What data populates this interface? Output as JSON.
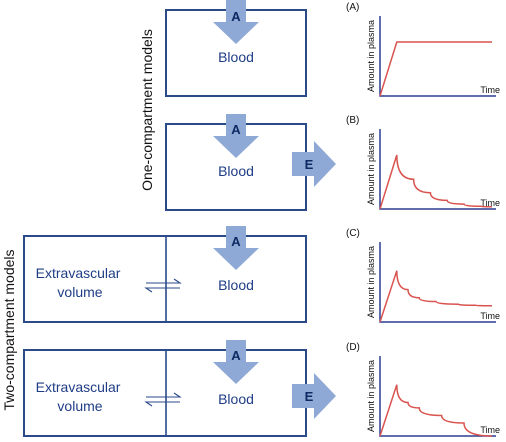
{
  "side_labels": {
    "one": "One-compartment models",
    "two": "Two-compartment models"
  },
  "models": [
    {
      "letter": "(A)",
      "admin": "A",
      "central": "Blood",
      "peripheral": "",
      "elimination": ""
    },
    {
      "letter": "(B)",
      "admin": "A",
      "central": "Blood",
      "peripheral": "",
      "elimination": "E"
    },
    {
      "letter": "(C)",
      "admin": "A",
      "central": "Blood",
      "peripheral": [
        "Extravascular",
        "volume"
      ],
      "elimination": ""
    },
    {
      "letter": "(D)",
      "admin": "A",
      "central": "Blood",
      "peripheral": [
        "Extravascular",
        "volume"
      ],
      "elimination": "E"
    }
  ],
  "graph_axes": {
    "ylabel": "Amount in plasma",
    "xlabel": "Time"
  },
  "chart_data": [
    {
      "type": "line",
      "xlabel": "Time",
      "ylabel": "Amount in plasma",
      "series": [
        {
          "x": [
            0,
            0.15,
            1
          ],
          "y": [
            0,
            1.0,
            1.0
          ]
        }
      ]
    },
    {
      "type": "line",
      "xlabel": "Time",
      "ylabel": "Amount in plasma",
      "series": [
        {
          "x": [
            0,
            0.15,
            0.3,
            0.45,
            0.6,
            0.75,
            0.9,
            1
          ],
          "y": [
            0,
            1.0,
            0.55,
            0.3,
            0.16,
            0.09,
            0.05,
            0.04
          ]
        }
      ]
    },
    {
      "type": "line",
      "xlabel": "Time",
      "ylabel": "Amount in plasma",
      "series": [
        {
          "x": [
            0,
            0.15,
            0.25,
            0.35,
            0.5,
            0.7,
            0.85,
            1
          ],
          "y": [
            0,
            0.95,
            0.6,
            0.45,
            0.38,
            0.33,
            0.31,
            0.3
          ]
        }
      ]
    },
    {
      "type": "line",
      "xlabel": "Time",
      "ylabel": "Amount in plasma",
      "series": [
        {
          "x": [
            0,
            0.15,
            0.25,
            0.35,
            0.55,
            0.75,
            1
          ],
          "y": [
            0,
            0.95,
            0.62,
            0.52,
            0.38,
            0.24,
            0.0
          ]
        }
      ]
    }
  ]
}
